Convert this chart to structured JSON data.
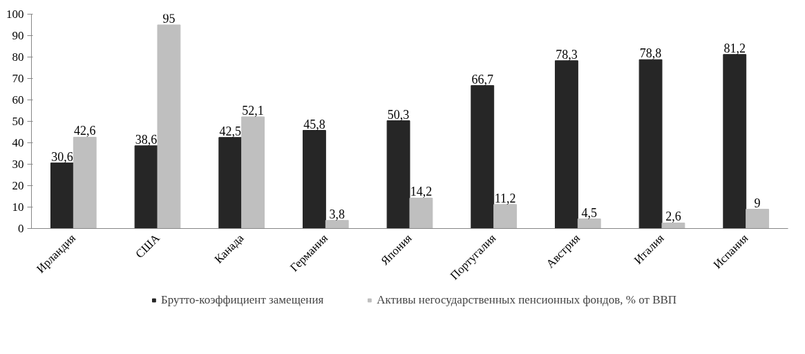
{
  "chart_data": {
    "type": "bar",
    "categories": [
      "Ирландия",
      "США",
      "Канада",
      "Германия",
      "Япония",
      "Португалия",
      "Австрия",
      "Италия",
      "Испания"
    ],
    "series": [
      {
        "name": "Брутто-коэффициент замещения",
        "color": "#262626",
        "values": [
          30.6,
          38.6,
          42.5,
          45.8,
          50.3,
          66.7,
          78.3,
          78.8,
          81.2
        ],
        "value_labels": [
          "30,6",
          "38,6",
          "42,5",
          "45,8",
          "50,3",
          "66,7",
          "78,3",
          "78,8",
          "81,2"
        ]
      },
      {
        "name": "Активы негосударственных пенсионных фондов, % от ВВП",
        "color": "#bfbfbf",
        "values": [
          42.6,
          95,
          52.1,
          3.8,
          14.2,
          11.2,
          4.5,
          2.6,
          9
        ],
        "value_labels": [
          "42,6",
          "95",
          "52,1",
          "3,8",
          "14,2",
          "11,2",
          "4,5",
          "2,6",
          "9"
        ]
      }
    ],
    "ylim": [
      0,
      100
    ],
    "yticks": [
      0,
      10,
      20,
      30,
      40,
      50,
      60,
      70,
      80,
      90,
      100
    ],
    "grid": false,
    "legend": "bottom"
  }
}
